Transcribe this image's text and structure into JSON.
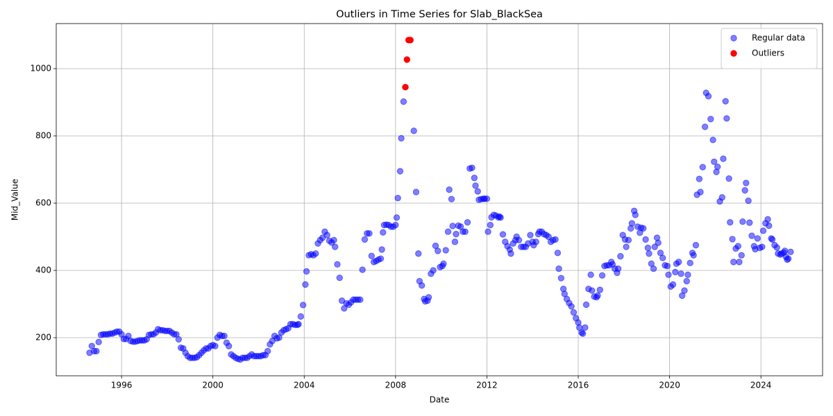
{
  "chart_data": {
    "type": "scatter",
    "title": "Outliers in Time Series for Slab_BlackSea",
    "xlabel": "Date",
    "ylabel": "Mid_Value",
    "xlim": [
      1993.14,
      2026.7
    ],
    "ylim": [
      86.6,
      1134
    ],
    "xticks": [
      1996,
      2000,
      2004,
      2008,
      2012,
      2016,
      2020,
      2024
    ],
    "yticks": [
      200,
      400,
      600,
      800,
      1000
    ],
    "grid": true,
    "legend": "upper right",
    "series": [
      {
        "name": "Regular data",
        "color": "#0000ff",
        "opacity": 0.5,
        "x": [
          1994.6,
          1994.7,
          1994.8,
          1994.9,
          1995.0,
          1995.1,
          1995.2,
          1995.3,
          1995.4,
          1995.5,
          1995.6,
          1995.7,
          1995.8,
          1995.9,
          1996.0,
          1996.1,
          1996.2,
          1996.3,
          1996.4,
          1996.5,
          1996.6,
          1996.7,
          1996.8,
          1996.9,
          1997.0,
          1997.1,
          1997.2,
          1997.3,
          1997.4,
          1997.5,
          1997.6,
          1997.7,
          1997.8,
          1997.9,
          1998.0,
          1998.1,
          1998.2,
          1998.3,
          1998.4,
          1998.5,
          1998.6,
          1998.7,
          1998.8,
          1998.9,
          1999.0,
          1999.1,
          1999.2,
          1999.3,
          1999.4,
          1999.5,
          1999.6,
          1999.7,
          1999.8,
          1999.9,
          2000.0,
          2000.1,
          2000.2,
          2000.3,
          2000.4,
          2000.5,
          2000.6,
          2000.7,
          2000.8,
          2000.9,
          2001.0,
          2001.1,
          2001.2,
          2001.3,
          2001.4,
          2001.5,
          2001.6,
          2001.7,
          2001.8,
          2001.9,
          2002.0,
          2002.1,
          2002.2,
          2002.3,
          2002.4,
          2002.5,
          2002.6,
          2002.7,
          2002.8,
          2002.9,
          2003.0,
          2003.1,
          2003.2,
          2003.3,
          2003.4,
          2003.5,
          2003.6,
          2003.7,
          2003.75,
          2003.85,
          2003.95,
          2004.05,
          2004.1,
          2004.2,
          2004.3,
          2004.4,
          2004.5,
          2004.6,
          2004.7,
          2004.8,
          2004.9,
          2005.0,
          2005.1,
          2005.2,
          2005.3,
          2005.35,
          2005.45,
          2005.55,
          2005.65,
          2005.75,
          2005.85,
          2005.95,
          2006.05,
          2006.15,
          2006.25,
          2006.35,
          2006.45,
          2006.55,
          2006.65,
          2006.75,
          2006.85,
          2006.95,
          2007.05,
          2007.15,
          2007.25,
          2007.35,
          2007.4,
          2007.45,
          2007.5,
          2007.6,
          2007.7,
          2007.8,
          2007.9,
          2008.0,
          2008.05,
          2008.1,
          2008.2,
          2008.25,
          2008.35,
          2008.8,
          2008.9,
          2009.0,
          2009.05,
          2009.15,
          2009.25,
          2009.3,
          2009.4,
          2009.45,
          2009.55,
          2009.65,
          2009.75,
          2009.85,
          2009.95,
          2010.05,
          2010.1,
          2010.2,
          2010.3,
          2010.35,
          2010.45,
          2010.5,
          2010.6,
          2010.65,
          2010.75,
          2010.85,
          2010.95,
          2011.05,
          2011.15,
          2011.25,
          2011.35,
          2011.45,
          2011.5,
          2011.6,
          2011.65,
          2011.75,
          2011.85,
          2011.9,
          2012.0,
          2012.05,
          2012.15,
          2012.2,
          2012.3,
          2012.4,
          2012.5,
          2012.55,
          2012.6,
          2012.7,
          2012.8,
          2012.9,
          2013.0,
          2013.05,
          2013.15,
          2013.25,
          2013.3,
          2013.4,
          2013.5,
          2013.6,
          2013.7,
          2013.8,
          2013.9,
          2014.0,
          2014.05,
          2014.15,
          2014.25,
          2014.3,
          2014.4,
          2014.5,
          2014.6,
          2014.7,
          2014.8,
          2014.9,
          2015.0,
          2015.1,
          2015.15,
          2015.25,
          2015.35,
          2015.4,
          2015.5,
          2015.6,
          2015.7,
          2015.8,
          2015.9,
          2016.0,
          2016.05,
          2016.15,
          2016.2,
          2016.3,
          2016.35,
          2016.45,
          2016.55,
          2016.6,
          2016.7,
          2016.8,
          2016.85,
          2016.95,
          2017.05,
          2017.15,
          2017.25,
          2017.35,
          2017.45,
          2017.5,
          2017.6,
          2017.7,
          2017.75,
          2017.85,
          2017.95,
          2018.05,
          2018.1,
          2018.2,
          2018.3,
          2018.35,
          2018.45,
          2018.5,
          2018.6,
          2018.7,
          2018.75,
          2018.85,
          2018.95,
          2019.05,
          2019.1,
          2019.2,
          2019.3,
          2019.35,
          2019.45,
          2019.5,
          2019.6,
          2019.7,
          2019.8,
          2019.9,
          2019.95,
          2020.05,
          2020.15,
          2020.25,
          2020.3,
          2020.4,
          2020.5,
          2020.55,
          2020.65,
          2020.75,
          2020.8,
          2020.9,
          2021.0,
          2021.05,
          2021.15,
          2021.2,
          2021.3,
          2021.35,
          2021.45,
          2021.55,
          2021.6,
          2021.7,
          2021.8,
          2021.9,
          2021.95,
          2022.05,
          2022.1,
          2022.2,
          2022.3,
          2022.35,
          2022.45,
          2022.5,
          2022.6,
          2022.65,
          2022.75,
          2022.8,
          2022.9,
          2023.0,
          2023.05,
          2023.15,
          2023.2,
          2023.3,
          2023.35,
          2023.45,
          2023.5,
          2023.6,
          2023.7,
          2023.75,
          2023.85,
          2023.95,
          2024.05,
          2024.1,
          2024.2,
          2024.3,
          2024.35,
          2024.45,
          2024.5,
          2024.6,
          2024.7,
          2024.75,
          2024.85,
          2024.9,
          2025.0,
          2025.05,
          2025.1,
          2025.15,
          2025.2,
          2025.3
        ],
        "values": [
          155,
          175,
          160,
          160,
          187,
          208,
          210,
          210,
          210,
          212,
          212,
          215,
          218,
          218,
          210,
          196,
          196,
          205,
          190,
          188,
          188,
          190,
          192,
          192,
          192,
          195,
          208,
          210,
          210,
          215,
          225,
          222,
          222,
          220,
          220,
          220,
          215,
          210,
          210,
          195,
          170,
          168,
          155,
          145,
          140,
          140,
          140,
          142,
          148,
          155,
          162,
          168,
          168,
          175,
          178,
          175,
          200,
          208,
          205,
          205,
          185,
          175,
          150,
          145,
          140,
          137,
          135,
          140,
          140,
          140,
          145,
          150,
          145,
          145,
          145,
          145,
          148,
          148,
          160,
          180,
          190,
          205,
          198,
          200,
          215,
          222,
          225,
          228,
          240,
          240,
          238,
          238,
          240,
          263,
          297,
          358,
          397,
          445,
          448,
          445,
          450,
          480,
          490,
          497,
          515,
          505,
          488,
          483,
          490,
          470,
          418,
          378,
          310,
          287,
          302,
          298,
          305,
          313,
          313,
          313,
          313,
          402,
          492,
          510,
          510,
          443,
          425,
          428,
          432,
          435,
          462,
          513,
          535,
          536,
          535,
          530,
          530,
          535,
          557,
          615,
          695,
          793,
          902,
          815,
          633,
          450,
          368,
          355,
          315,
          308,
          310,
          320,
          390,
          400,
          473,
          458,
          410,
          413,
          420,
          460,
          515,
          640,
          612,
          532,
          485,
          508,
          533,
          530,
          515,
          515,
          543,
          703,
          705,
          675,
          652,
          635,
          610,
          612,
          613,
          613,
          613,
          515,
          535,
          558,
          565,
          563,
          558,
          560,
          557,
          507,
          485,
          472,
          462,
          450,
          480,
          490,
          500,
          490,
          470,
          470,
          470,
          480,
          505,
          485,
          475,
          485,
          508,
          515,
          515,
          508,
          505,
          500,
          485,
          490,
          492,
          452,
          405,
          377,
          345,
          330,
          315,
          303,
          293,
          275,
          258,
          245,
          230,
          215,
          212,
          230,
          298,
          345,
          387,
          340,
          322,
          320,
          325,
          342,
          385,
          413,
          415,
          415,
          425,
          418,
          405,
          393,
          405,
          442,
          505,
          492,
          470,
          490,
          525,
          540,
          577,
          565,
          530,
          512,
          527,
          525,
          492,
          467,
          450,
          420,
          405,
          470,
          497,
          482,
          452,
          437,
          415,
          413,
          387,
          352,
          358,
          395,
          420,
          425,
          390,
          325,
          340,
          368,
          387,
          422,
          452,
          445,
          475,
          625,
          672,
          633,
          707,
          827,
          928,
          918,
          850,
          788,
          723,
          693,
          708,
          605,
          617,
          732,
          903,
          852,
          673,
          543,
          493,
          425,
          465,
          472,
          425,
          445,
          545,
          638,
          660,
          607,
          542,
          503,
          472,
          463,
          495,
          467,
          470,
          518,
          540,
          552,
          533,
          495,
          492,
          475,
          468,
          450,
          447,
          450,
          453,
          458,
          440,
          432,
          435,
          455
        ]
      },
      {
        "name": "Outliers",
        "color": "#ff0000",
        "opacity": 1,
        "x": [
          2008.43,
          2008.5,
          2008.57,
          2008.65
        ],
        "values": [
          945,
          1027,
          1085,
          1085
        ]
      }
    ]
  }
}
